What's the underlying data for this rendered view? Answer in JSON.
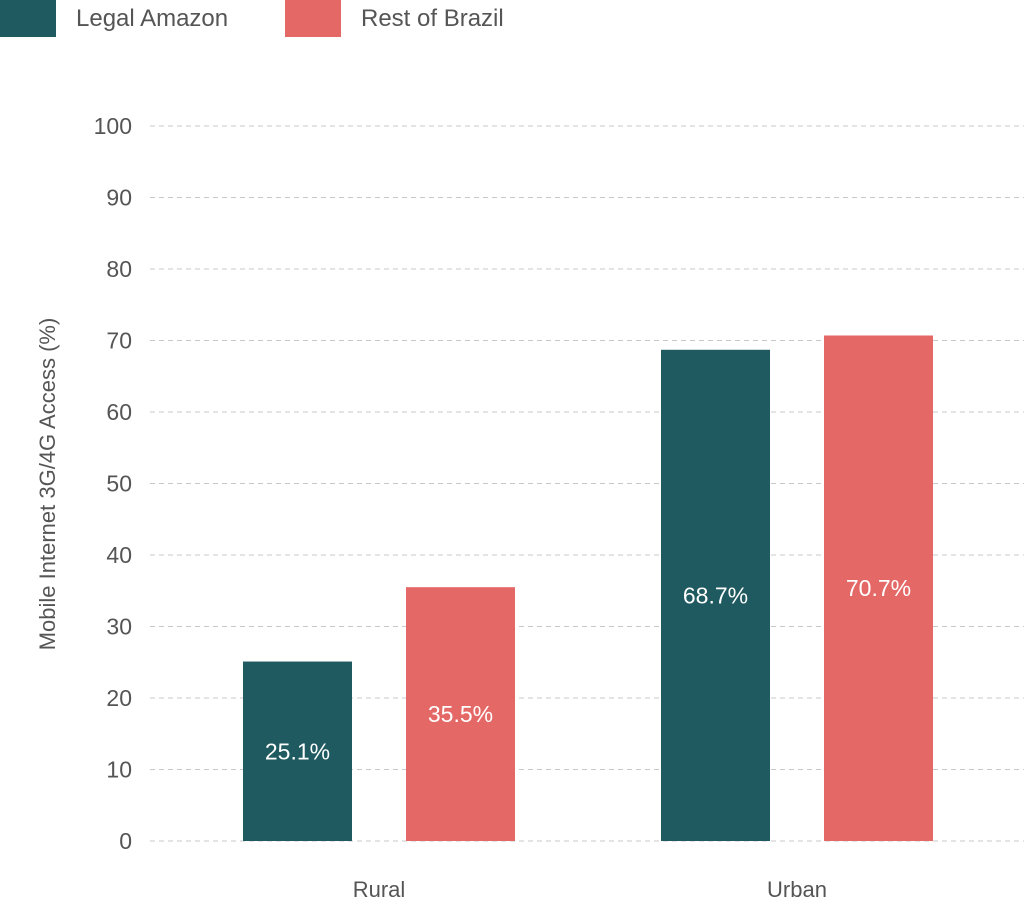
{
  "chart_data": {
    "type": "bar",
    "title": "",
    "xlabel": "",
    "ylabel": "Mobile Internet 3G/4G Access (%)",
    "ylim": [
      0,
      100
    ],
    "yticks": [
      0,
      10,
      20,
      30,
      40,
      50,
      60,
      70,
      80,
      90,
      100
    ],
    "grid": true,
    "legend_placement": "top-left",
    "categories": [
      "Rural",
      "Urban"
    ],
    "series": [
      {
        "name": "Legal Amazon",
        "color": "#1e5a5f",
        "values": [
          25.1,
          68.7
        ],
        "labels": [
          "25.1%",
          "68.7%"
        ]
      },
      {
        "name": "Rest of Brazil",
        "color": "#e46866",
        "values": [
          35.5,
          70.7
        ],
        "labels": [
          "35.5%",
          "70.7%"
        ]
      }
    ]
  }
}
